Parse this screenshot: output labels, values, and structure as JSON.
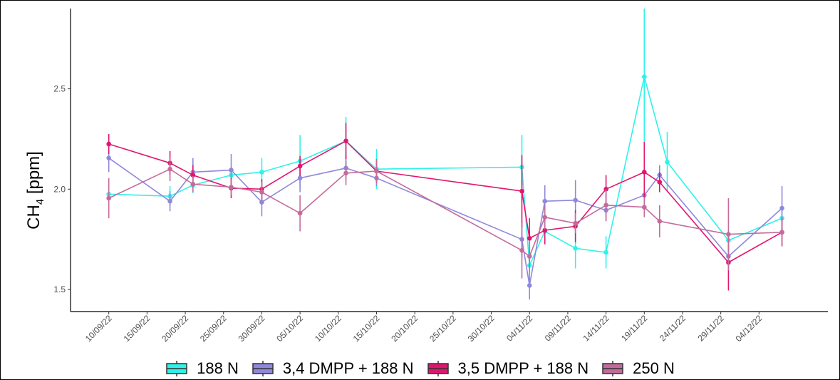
{
  "chart_data": {
    "type": "line",
    "title": "",
    "xlabel": "",
    "ylabel": "CH4 [ppm]",
    "ylabel_main": "CH",
    "ylabel_sub": "4",
    "ylabel_unit": " [ppm]",
    "x_type": "date",
    "xlim": [
      "2022-09-05",
      "2022-12-13"
    ],
    "ylim": [
      1.39,
      2.9
    ],
    "y_ticks": [
      1.5,
      2.0,
      2.5
    ],
    "y_tick_labels": [
      "1.5",
      "2.0",
      "2.5"
    ],
    "x_ticks": [
      "2022-09-10",
      "2022-09-15",
      "2022-09-20",
      "2022-09-25",
      "2022-09-30",
      "2022-10-05",
      "2022-10-10",
      "2022-10-15",
      "2022-10-20",
      "2022-10-25",
      "2022-10-30",
      "2022-11-04",
      "2022-11-09",
      "2022-11-14",
      "2022-11-19",
      "2022-11-24",
      "2022-11-29",
      "2022-12-04"
    ],
    "x_tick_labels": [
      "10/09/22",
      "15/09/22",
      "20/09/22",
      "25/09/22",
      "30/09/22",
      "05/10/22",
      "10/10/22",
      "15/10/22",
      "20/10/22",
      "25/10/22",
      "30/10/22",
      "04/11/22",
      "09/11/22",
      "14/11/22",
      "19/11/22",
      "24/11/22",
      "29/11/22",
      "04/12/22"
    ],
    "grid": false,
    "legend_position": "bottom",
    "series": [
      {
        "name": "188 N",
        "color": "#2ff2e8",
        "x": [
          "2022-09-10",
          "2022-09-18",
          "2022-09-21",
          "2022-09-26",
          "2022-09-30",
          "2022-10-05",
          "2022-10-11",
          "2022-10-15",
          "2022-11-03",
          "2022-11-04",
          "2022-11-06",
          "2022-11-10",
          "2022-11-14",
          "2022-11-19",
          "2022-11-22",
          "2022-11-30",
          "2022-12-07"
        ],
        "y": [
          1.975,
          1.965,
          2.02,
          2.07,
          2.085,
          2.14,
          2.24,
          2.1,
          2.11,
          1.62,
          1.79,
          1.705,
          1.685,
          2.56,
          2.135,
          1.745,
          1.855
        ],
        "err": [
          0.05,
          0.05,
          0.04,
          0.04,
          0.07,
          0.13,
          0.12,
          0.1,
          0.16,
          0.05,
          0.06,
          0.1,
          0.08,
          0.34,
          0.15,
          0.05,
          0.06
        ]
      },
      {
        "name": "3,4 DMPP + 188 N",
        "color": "#8f88dc",
        "x": [
          "2022-09-10",
          "2022-09-18",
          "2022-09-21",
          "2022-09-26",
          "2022-09-30",
          "2022-10-05",
          "2022-10-11",
          "2022-10-15",
          "2022-11-03",
          "2022-11-04",
          "2022-11-06",
          "2022-11-10",
          "2022-11-14",
          "2022-11-19",
          "2022-11-21",
          "2022-11-30",
          "2022-12-07"
        ],
        "y": [
          2.155,
          1.94,
          2.085,
          2.095,
          1.935,
          2.055,
          2.105,
          2.055,
          1.75,
          1.52,
          1.94,
          1.945,
          1.895,
          1.97,
          2.07,
          1.665,
          1.905
        ],
        "err": [
          0.07,
          0.05,
          0.07,
          0.08,
          0.07,
          0.07,
          0.06,
          0.04,
          0.09,
          0.07,
          0.08,
          0.1,
          0.05,
          0.09,
          0.05,
          0.05,
          0.11
        ]
      },
      {
        "name": "3,5 DMPP + 188 N",
        "color": "#e0166e",
        "x": [
          "2022-09-10",
          "2022-09-18",
          "2022-09-21",
          "2022-09-26",
          "2022-09-30",
          "2022-10-05",
          "2022-10-11",
          "2022-10-15",
          "2022-11-03",
          "2022-11-04",
          "2022-11-06",
          "2022-11-10",
          "2022-11-14",
          "2022-11-19",
          "2022-11-21",
          "2022-11-30",
          "2022-12-07"
        ],
        "y": [
          2.225,
          2.13,
          2.07,
          2.005,
          2.0,
          2.115,
          2.24,
          2.09,
          1.99,
          1.755,
          1.795,
          1.815,
          2.0,
          2.085,
          2.035,
          1.635,
          1.785
        ],
        "err": [
          0.05,
          0.06,
          0.05,
          0.05,
          0.05,
          0.05,
          0.09,
          0.06,
          0.18,
          0.1,
          0.07,
          0.08,
          0.07,
          0.15,
          0.05,
          0.14,
          0.07
        ]
      },
      {
        "name": "250 N",
        "color": "#c36c9c",
        "x": [
          "2022-09-10",
          "2022-09-18",
          "2022-09-21",
          "2022-09-26",
          "2022-09-30",
          "2022-10-05",
          "2022-10-11",
          "2022-10-15",
          "2022-11-03",
          "2022-11-04",
          "2022-11-06",
          "2022-11-10",
          "2022-11-14",
          "2022-11-19",
          "2022-11-21",
          "2022-11-30",
          "2022-12-07"
        ],
        "y": [
          1.955,
          2.1,
          2.025,
          2.01,
          1.985,
          1.88,
          2.08,
          2.09,
          1.695,
          1.665,
          1.86,
          1.83,
          1.92,
          1.91,
          1.84,
          1.775,
          1.785
        ],
        "err": [
          0.1,
          0.06,
          0.04,
          0.04,
          0.05,
          0.09,
          0.06,
          0.06,
          0.14,
          0.08,
          0.06,
          0.05,
          0.08,
          0.05,
          0.08,
          0.18,
          0.07
        ]
      }
    ]
  }
}
